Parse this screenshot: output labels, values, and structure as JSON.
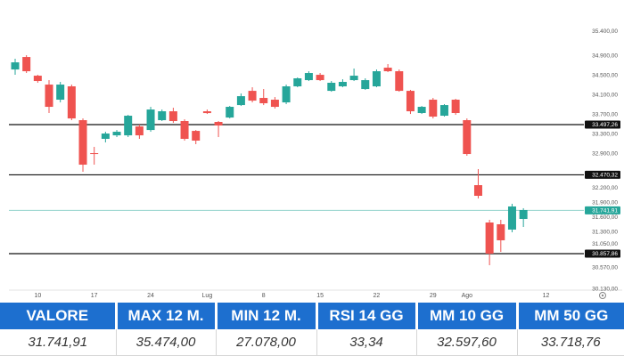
{
  "chart_data": {
    "type": "candlestick",
    "categories": [
      null,
      null,
      "10",
      null,
      null,
      null,
      null,
      "17",
      null,
      null,
      null,
      null,
      "24",
      null,
      null,
      null,
      null,
      "Lug",
      null,
      null,
      null,
      null,
      "8",
      null,
      null,
      null,
      null,
      "15",
      null,
      null,
      null,
      null,
      "22",
      null,
      null,
      null,
      null,
      "29",
      null,
      null,
      "Ago",
      null,
      null,
      null,
      null,
      null,
      null,
      "12",
      null,
      null,
      null
    ],
    "open": [
      34625,
      34880,
      34498,
      34316,
      34007,
      34280,
      33588,
      32914,
      33206,
      33278,
      33278,
      33460,
      33387,
      33588,
      33770,
      33570,
      33369,
      33770,
      33552,
      33642,
      33897,
      34188,
      34043,
      34007,
      33952,
      34280,
      34407,
      34516,
      34188,
      34280,
      34407,
      34225,
      34280,
      34662,
      34589,
      34188,
      33734,
      34007,
      33679,
      34007,
      33588,
      32259,
      31495,
      31459,
      31350,
      31568,
      null,
      null,
      null,
      null,
      null
    ],
    "high": [
      34844,
      34917,
      34516,
      34407,
      34371,
      34316,
      33624,
      33042,
      33351,
      33387,
      33697,
      33497,
      33861,
      33806,
      33843,
      33606,
      33387,
      33806,
      33570,
      33879,
      34134,
      34261,
      34225,
      34061,
      34316,
      34462,
      34589,
      34553,
      34389,
      34425,
      34644,
      34444,
      34625,
      34735,
      34625,
      34207,
      33879,
      34043,
      33916,
      34025,
      33624,
      32587,
      31550,
      31550,
      31878,
      31787,
      null,
      null,
      null,
      null,
      null
    ],
    "low": [
      34516,
      34553,
      34353,
      33734,
      33952,
      33588,
      32533,
      32678,
      33133,
      33242,
      33242,
      33206,
      33351,
      33570,
      33533,
      33170,
      33097,
      33715,
      33242,
      33624,
      33879,
      33952,
      33897,
      33825,
      33916,
      34262,
      34389,
      34389,
      34170,
      34262,
      34389,
      34207,
      34262,
      34571,
      34170,
      33715,
      33715,
      33624,
      33661,
      33697,
      32860,
      31987,
      30621,
      30894,
      31295,
      31404,
      null,
      null,
      null,
      null,
      null
    ],
    "close": [
      34771,
      34589,
      34389,
      33861,
      34316,
      33624,
      32678,
      32896,
      33315,
      33351,
      33679,
      33278,
      33806,
      33770,
      33570,
      33206,
      33170,
      33733,
      33479,
      33861,
      34079,
      33988,
      33934,
      33861,
      34280,
      34444,
      34553,
      34407,
      34353,
      34371,
      34498,
      34407,
      34589,
      34589,
      34188,
      33770,
      33861,
      33661,
      33897,
      33734,
      32896,
      32041,
      30858,
      31131,
      31823,
      31750,
      null,
      null,
      null,
      null,
      null
    ],
    "up_color": "#26a69a",
    "down_color": "#ef5350",
    "ylim": [
      30075,
      35500
    ],
    "yticks": [
      {
        "value": 35400,
        "label": "35.400,00"
      },
      {
        "value": 34900,
        "label": "34.900,00"
      },
      {
        "value": 34500,
        "label": "34.500,00"
      },
      {
        "value": 34100,
        "label": "34.100,00"
      },
      {
        "value": 33700,
        "label": "33.700,00"
      },
      {
        "value": 33300,
        "label": "33.300,00"
      },
      {
        "value": 32900,
        "label": "32.900,00"
      },
      {
        "value": 32200,
        "label": "32.200,00"
      },
      {
        "value": 31900,
        "label": "31.900,00"
      },
      {
        "value": 31600,
        "label": "31.600,00"
      },
      {
        "value": 31300,
        "label": "31.300,00"
      },
      {
        "value": 31050,
        "label": "31.050,00"
      },
      {
        "value": 30570,
        "label": "30.570,00"
      },
      {
        "value": 30130,
        "label": "30.130,00"
      }
    ],
    "grid": false,
    "levels": [
      {
        "value": 33497.26,
        "label": "33.497,26",
        "color": "#111111"
      },
      {
        "value": 32470.32,
        "label": "32.470,32",
        "color": "#111111"
      },
      {
        "value": 31741.91,
        "label": "31.741,91",
        "color": "#26a69a"
      },
      {
        "value": 30857.86,
        "label": "30.857,86",
        "color": "#111111"
      }
    ]
  },
  "table": {
    "header": [
      "VALORE",
      "MAX 12 M.",
      "MIN 12 M.",
      "RSI 14 GG",
      "MM 10 GG",
      "MM 50 GG"
    ],
    "rows": [
      [
        "31.741,91",
        "35.474,00",
        "27.078,00",
        "33,34",
        "32.597,60",
        "33.718,76"
      ]
    ]
  }
}
